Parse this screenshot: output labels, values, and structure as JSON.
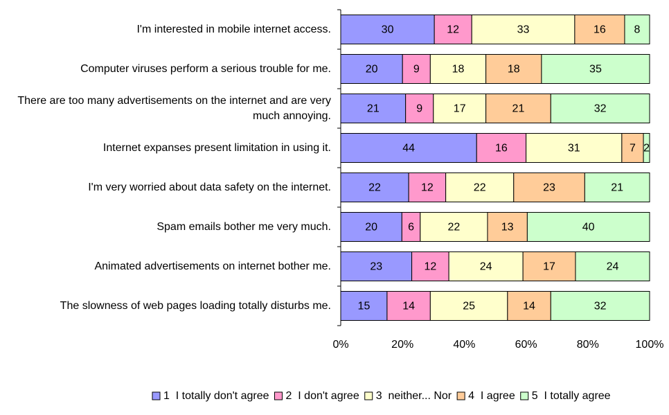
{
  "chart_data": {
    "type": "bar",
    "orientation": "horizontal",
    "stacking": "percent",
    "categories": [
      "I'm interested in mobile internet access.",
      "Computer viruses perform a serious trouble for me.",
      "There are too many advertisements on the internet and are very much annoying.",
      "Internet expanses present limitation in using it.",
      "I'm very worried about data safety on the internet.",
      "Spam emails bother me very much.",
      "Animated advertisements on internet bother me.",
      "The slowness of web pages loading totally disturbs me."
    ],
    "series": [
      {
        "name": "1  I totally don't agree",
        "color": "#9999ff",
        "values": [
          30,
          20,
          21,
          44,
          22,
          20,
          23,
          15
        ]
      },
      {
        "name": "2  I don't agree",
        "color": "#ff99cc",
        "values": [
          12,
          9,
          9,
          16,
          12,
          6,
          12,
          14
        ]
      },
      {
        "name": "3  neither... Nor",
        "color": "#ffffcc",
        "values": [
          33,
          18,
          17,
          31,
          22,
          22,
          24,
          25
        ]
      },
      {
        "name": "4  I agree",
        "color": "#ffcc99",
        "values": [
          16,
          18,
          21,
          7,
          23,
          13,
          17,
          14
        ]
      },
      {
        "name": "5  I totally agree",
        "color": "#ccffcc",
        "values": [
          8,
          35,
          32,
          2,
          21,
          40,
          24,
          32
        ]
      }
    ],
    "xlim": [
      0,
      100
    ],
    "xticks": [
      {
        "value": 0,
        "label": "0%"
      },
      {
        "value": 20,
        "label": "20%"
      },
      {
        "value": 40,
        "label": "40%"
      },
      {
        "value": 60,
        "label": "60%"
      },
      {
        "value": 80,
        "label": "80%"
      },
      {
        "value": 100,
        "label": "100%"
      }
    ],
    "legend": "bottom"
  }
}
